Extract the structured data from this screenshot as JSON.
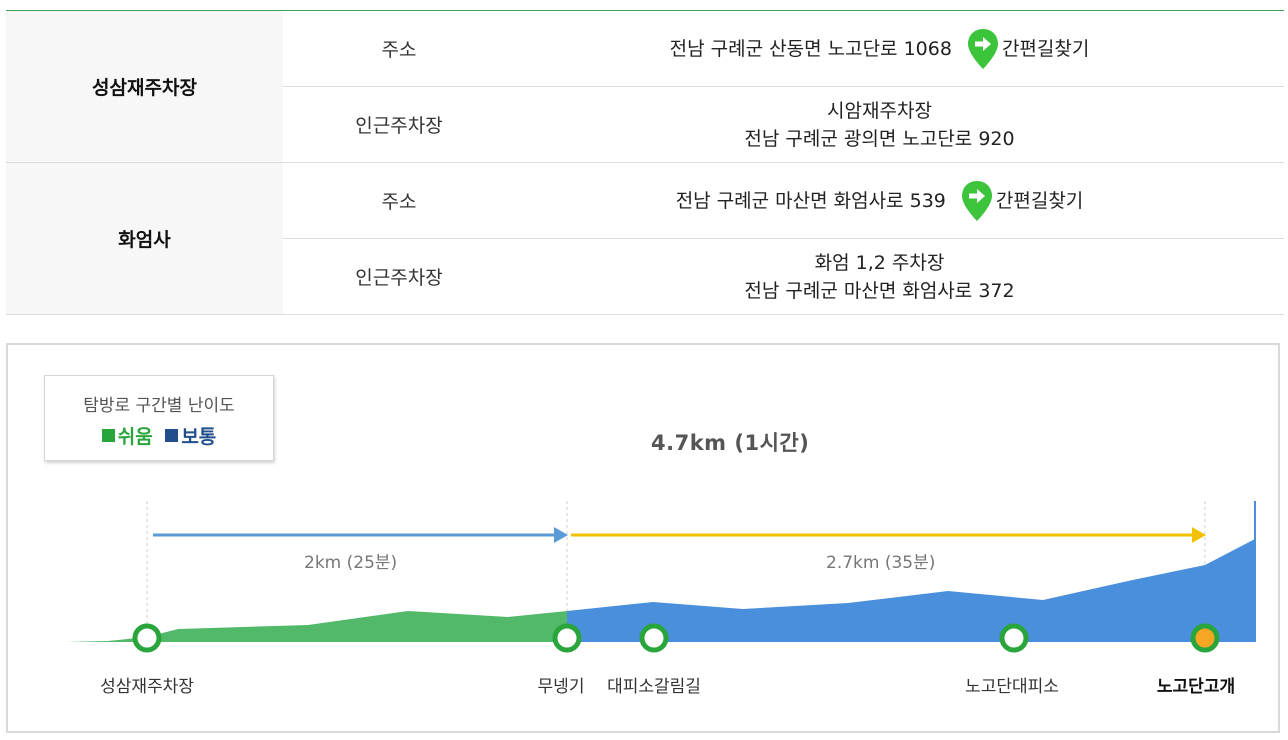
{
  "parking": [
    {
      "name": "성삼재주차장",
      "rows": [
        {
          "label": "주소",
          "lines": [
            "전남 구례군 산동면 노고단로 1068"
          ],
          "route_link": "간편길찾기"
        },
        {
          "label": "인근주차장",
          "lines": [
            "시암재주차장",
            "전남 구례군 광의면 노고단로 920"
          ]
        }
      ]
    },
    {
      "name": "화엄사",
      "rows": [
        {
          "label": "주소",
          "lines": [
            "전남 구례군 마산면 화엄사로 539"
          ],
          "route_link": "간편길찾기"
        },
        {
          "label": "인근주차장",
          "lines": [
            "화엄 1,2 주차장",
            "전남 구례군 마산면 화엄사로 372"
          ]
        }
      ]
    }
  ],
  "trail": {
    "legend": {
      "title": "탐방로 구간별 난이도",
      "easy": "쉬움",
      "normal": "보통",
      "easy_color": "#2aa53b",
      "normal_color": "#214f8c"
    },
    "total": "4.7km (1시간)",
    "segments": [
      {
        "label": "2km (25분)",
        "color": "#5b9bd5"
      },
      {
        "label": "2.7km (35분)",
        "color": "#f2c200"
      }
    ],
    "stops": [
      {
        "name": "성삼재주차장"
      },
      {
        "name": "무넹기"
      },
      {
        "name": "대피소갈림길"
      },
      {
        "name": "노고단대피소"
      },
      {
        "name": "노고단고개"
      }
    ],
    "colors": {
      "easy_area": "#52b86a",
      "normal_area": "#4a8fdc",
      "marker_ring": "#2aa53b",
      "end_marker": "#f5a623"
    }
  }
}
